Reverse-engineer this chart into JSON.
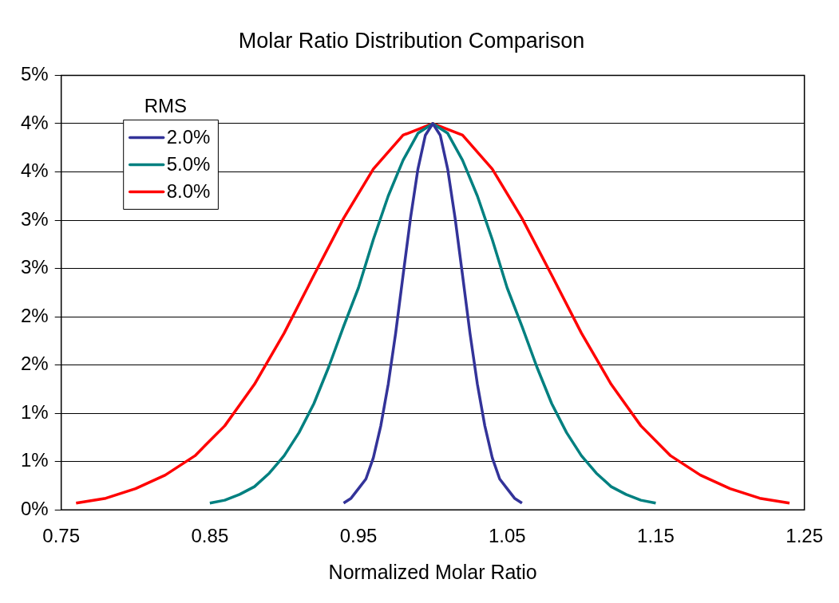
{
  "chart_data": {
    "type": "line",
    "title": "Molar Ratio Distribution Comparison",
    "xlabel": "Normalized Molar Ratio",
    "legend_title": "RMS",
    "legend": "top left",
    "grid": "y",
    "marker": "none",
    "line_style": "solid",
    "xlim": [
      0.75,
      1.25
    ],
    "xticks": [
      0.75,
      0.85,
      0.95,
      1.05,
      1.15,
      1.25
    ],
    "ylim": [
      0,
      4.5
    ],
    "yticks": [
      {
        "value": 0,
        "label": "0%"
      },
      {
        "value": 0.5,
        "label": "1%"
      },
      {
        "value": 1,
        "label": "1%"
      },
      {
        "value": 1.5,
        "label": "2%"
      },
      {
        "value": 2,
        "label": "2%"
      },
      {
        "value": 2.5,
        "label": "3%"
      },
      {
        "value": 3,
        "label": "3%"
      },
      {
        "value": 3.5,
        "label": "4%"
      },
      {
        "value": 4,
        "label": "4%"
      },
      {
        "value": 4.5,
        "label": "5%"
      }
    ],
    "series": [
      {
        "name": "2.0%",
        "color": "#333399",
        "x": [
          0.94,
          0.945,
          0.95,
          0.955,
          0.96,
          0.965,
          0.97,
          0.975,
          0.98,
          0.985,
          0.99,
          0.995,
          1.0,
          1.005,
          1.01,
          1.015,
          1.02,
          1.025,
          1.03,
          1.035,
          1.04,
          1.045,
          1.05,
          1.055,
          1.06
        ],
        "values": [
          0.07,
          0.12,
          0.22,
          0.32,
          0.54,
          0.87,
          1.3,
          1.83,
          2.43,
          3.02,
          3.53,
          3.88,
          4.0,
          3.88,
          3.53,
          3.02,
          2.43,
          1.83,
          1.3,
          0.87,
          0.54,
          0.32,
          0.22,
          0.12,
          0.07
        ]
      },
      {
        "name": "5.0%",
        "color": "#008080",
        "x": [
          0.85,
          0.86,
          0.87,
          0.88,
          0.89,
          0.9,
          0.91,
          0.92,
          0.93,
          0.94,
          0.95,
          0.96,
          0.97,
          0.98,
          0.99,
          1.0,
          1.01,
          1.02,
          1.03,
          1.04,
          1.05,
          1.06,
          1.07,
          1.08,
          1.09,
          1.1,
          1.11,
          1.12,
          1.13,
          1.14,
          1.15
        ],
        "values": [
          0.07,
          0.1,
          0.16,
          0.24,
          0.38,
          0.56,
          0.8,
          1.1,
          1.48,
          1.9,
          2.3,
          2.8,
          3.25,
          3.62,
          3.9,
          4.0,
          3.9,
          3.62,
          3.25,
          2.8,
          2.3,
          1.9,
          1.48,
          1.1,
          0.8,
          0.56,
          0.38,
          0.24,
          0.16,
          0.1,
          0.07
        ]
      },
      {
        "name": "8.0%",
        "color": "#ff0000",
        "x": [
          0.76,
          0.78,
          0.8,
          0.82,
          0.84,
          0.86,
          0.88,
          0.9,
          0.92,
          0.94,
          0.96,
          0.98,
          1.0,
          1.02,
          1.04,
          1.06,
          1.08,
          1.1,
          1.12,
          1.14,
          1.16,
          1.18,
          1.2,
          1.22,
          1.24
        ],
        "values": [
          0.07,
          0.12,
          0.22,
          0.36,
          0.56,
          0.87,
          1.3,
          1.83,
          2.43,
          3.02,
          3.53,
          3.88,
          4.0,
          3.88,
          3.53,
          3.02,
          2.43,
          1.83,
          1.3,
          0.87,
          0.56,
          0.36,
          0.22,
          0.12,
          0.07
        ]
      }
    ]
  }
}
